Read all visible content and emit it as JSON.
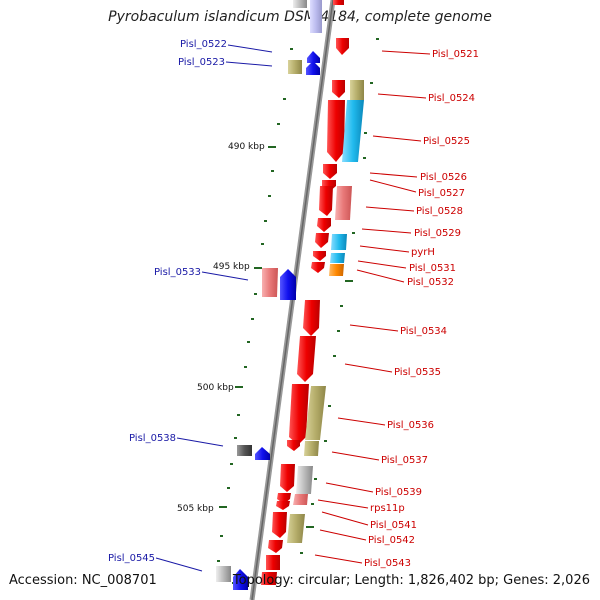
{
  "title": "Pyrobaculum islandicum DSM 4184, complete genome",
  "footer": {
    "accession": "Accession: NC_008701",
    "topology": "Topology: circular; Length: 1,826,402 bp; Genes: 2,026"
  },
  "colors": {
    "red": "#ee1111",
    "pink": "#ee8888",
    "olive": "#b5ad6a",
    "cyan": "#22bbee",
    "orange": "#ff8800",
    "gray": "#bbbbbb",
    "dark": "#555555",
    "blue": "#1111ee",
    "tick": "#226622"
  },
  "ticks": [
    {
      "label": "490 kbp"
    },
    {
      "label": "495 kbp"
    },
    {
      "label": "500 kbp"
    },
    {
      "label": "505 kbp"
    }
  ],
  "right_labels": [
    "Pisl_0521",
    "Pisl_0524",
    "Pisl_0525",
    "Pisl_0526",
    "Pisl_0527",
    "Pisl_0528",
    "Pisl_0529",
    "pyrH",
    "Pisl_0531",
    "Pisl_0532",
    "Pisl_0534",
    "Pisl_0535",
    "Pisl_0536",
    "Pisl_0537",
    "Pisl_0539",
    "rps11p",
    "Pisl_0541",
    "Pisl_0542",
    "Pisl_0543"
  ],
  "left_labels": [
    "Pisl_0522",
    "Pisl_0523",
    "Pisl_0533",
    "Pisl_0538",
    "Pisl_0545"
  ]
}
